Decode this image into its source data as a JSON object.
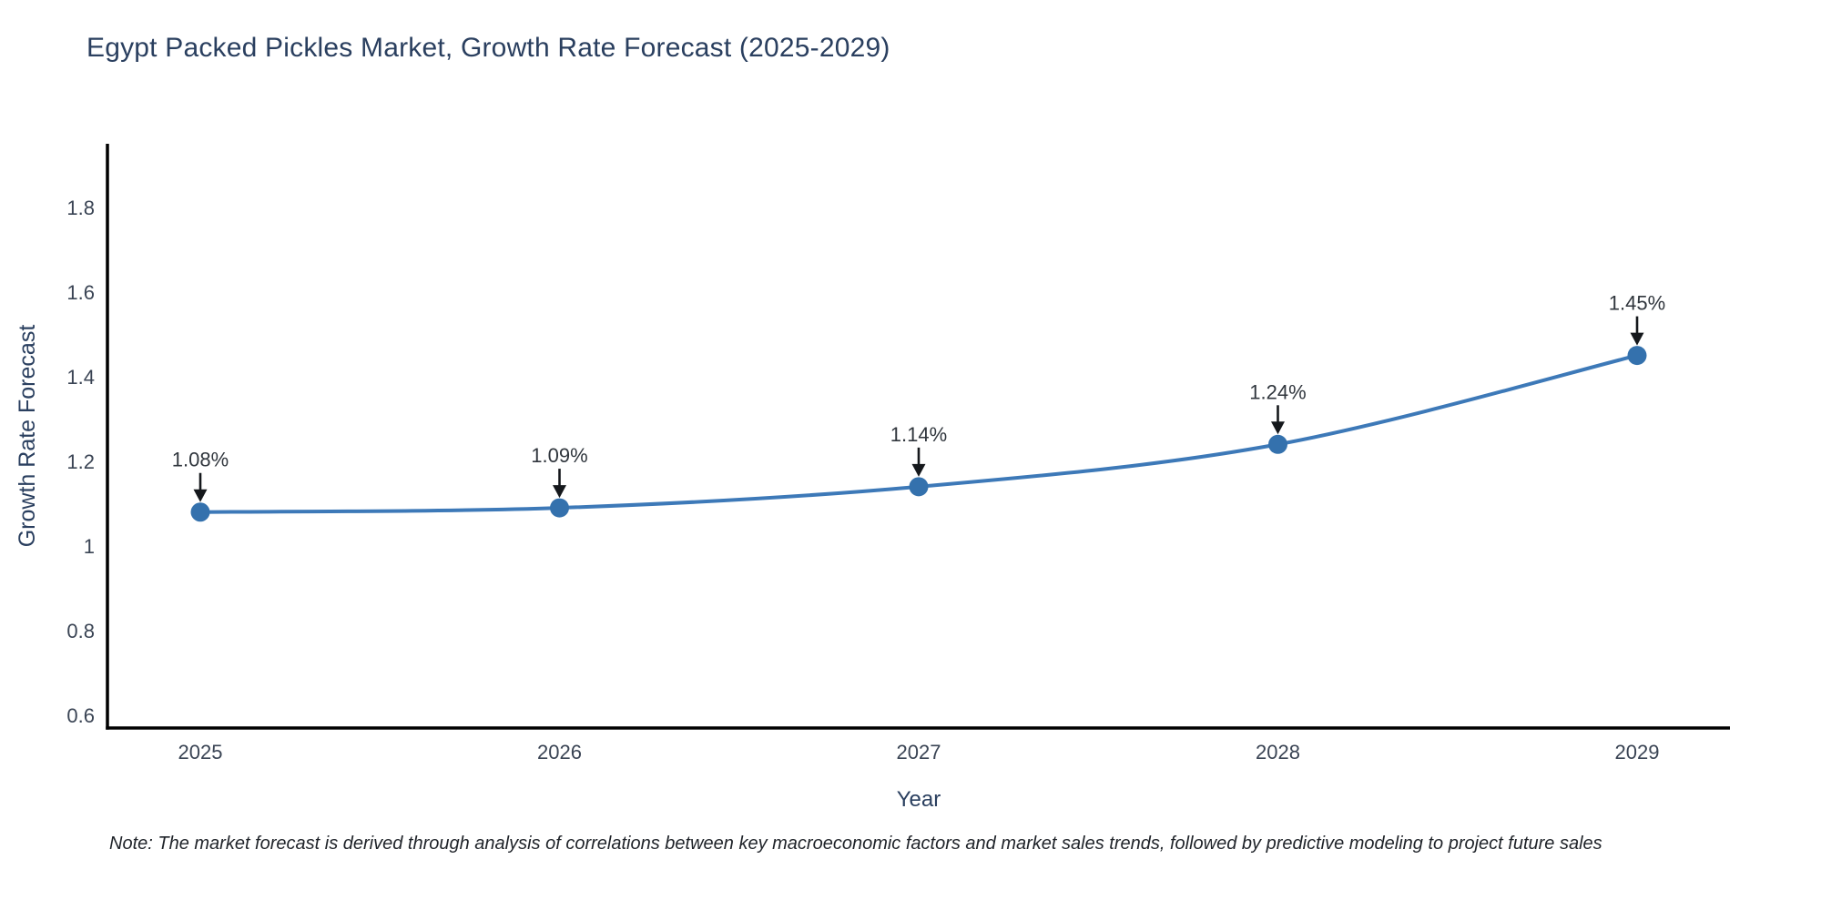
{
  "title": "Egypt Packed Pickles Market, Growth Rate Forecast (2025-2029)",
  "note": "Note: The market forecast is derived through analysis of correlations between key macroeconomic factors and market sales trends, followed by predictive modeling to project future sales",
  "chart_data": {
    "type": "line",
    "title": "Egypt Packed Pickles Market, Growth Rate Forecast (2025-2029)",
    "x": [
      2025,
      2026,
      2027,
      2028,
      2029
    ],
    "values": [
      1.08,
      1.09,
      1.14,
      1.24,
      1.45
    ],
    "point_labels": [
      "1.08%",
      "1.09%",
      "1.14%",
      "1.24%",
      "1.45%"
    ],
    "xtick_labels": [
      "2025",
      "2026",
      "2027",
      "2028",
      "2029"
    ],
    "yticks": [
      {
        "v": 0.6,
        "label": "0.6"
      },
      {
        "v": 0.8,
        "label": "0.8"
      },
      {
        "v": 1.0,
        "label": "1"
      },
      {
        "v": 1.2,
        "label": "1.2"
      },
      {
        "v": 1.4,
        "label": "1.4"
      },
      {
        "v": 1.6,
        "label": "1.6"
      },
      {
        "v": 1.8,
        "label": "1.8"
      }
    ],
    "ylim": [
      0.57,
      1.95
    ],
    "xlabel": "Year",
    "ylabel": "Growth Rate Forecast",
    "grid": false,
    "legend": "none",
    "line_shape": "spline",
    "colors": {
      "line": "#3d79b8",
      "marker": "#3471ad",
      "axis": "#000000",
      "axis_title": "#2a3f5f",
      "tick_label": "#3a4454",
      "annotation_text": "#30363d",
      "arrow": "#15181c",
      "page_title": "#2a3f5f"
    }
  }
}
